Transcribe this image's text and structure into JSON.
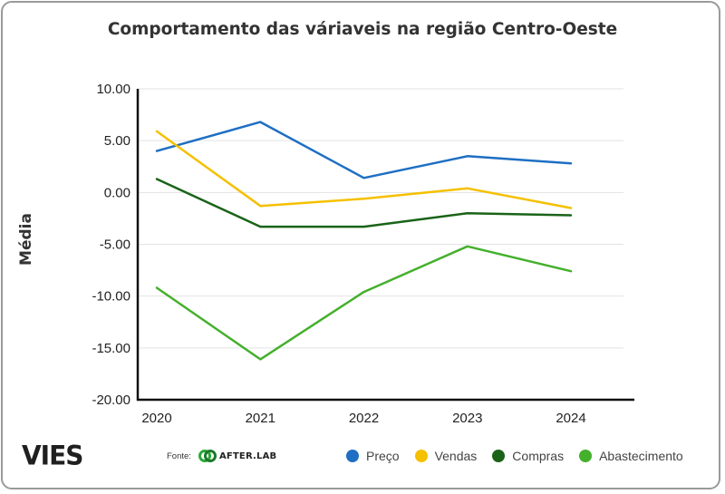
{
  "chart_data": {
    "type": "line",
    "title": "Comportamento das váriaveis na região Centro-Oeste",
    "xlabel": "",
    "ylabel": "Média",
    "ylim": [
      -20,
      10
    ],
    "yticks": [
      10,
      5,
      0,
      -5,
      -10,
      -15,
      -20
    ],
    "ytick_labels": [
      "10.00",
      "5.00",
      "0.00",
      "-5.00",
      "-10.00",
      "-15.00",
      "-20.00"
    ],
    "categories": [
      "2020",
      "2021",
      "2022",
      "2023",
      "2024"
    ],
    "series": [
      {
        "name": "Preço",
        "color": "#1e6fc3",
        "values": [
          4.0,
          6.8,
          1.4,
          3.5,
          2.8
        ]
      },
      {
        "name": "Vendas",
        "color": "#f5c000",
        "values": [
          5.9,
          -1.3,
          -0.6,
          0.4,
          -1.5
        ]
      },
      {
        "name": "Compras",
        "color": "#1a6318",
        "values": [
          1.3,
          -3.3,
          -3.3,
          -2.0,
          -2.2
        ]
      },
      {
        "name": "Abastecimento",
        "color": "#44b02c",
        "values": [
          -9.2,
          -16.1,
          -9.6,
          -5.2,
          -7.6
        ]
      }
    ],
    "grid": true,
    "legend": "bottom"
  },
  "footer": {
    "logo": "VIES",
    "source_label": "Fonte:",
    "source_name": "AFTER.LAB"
  }
}
